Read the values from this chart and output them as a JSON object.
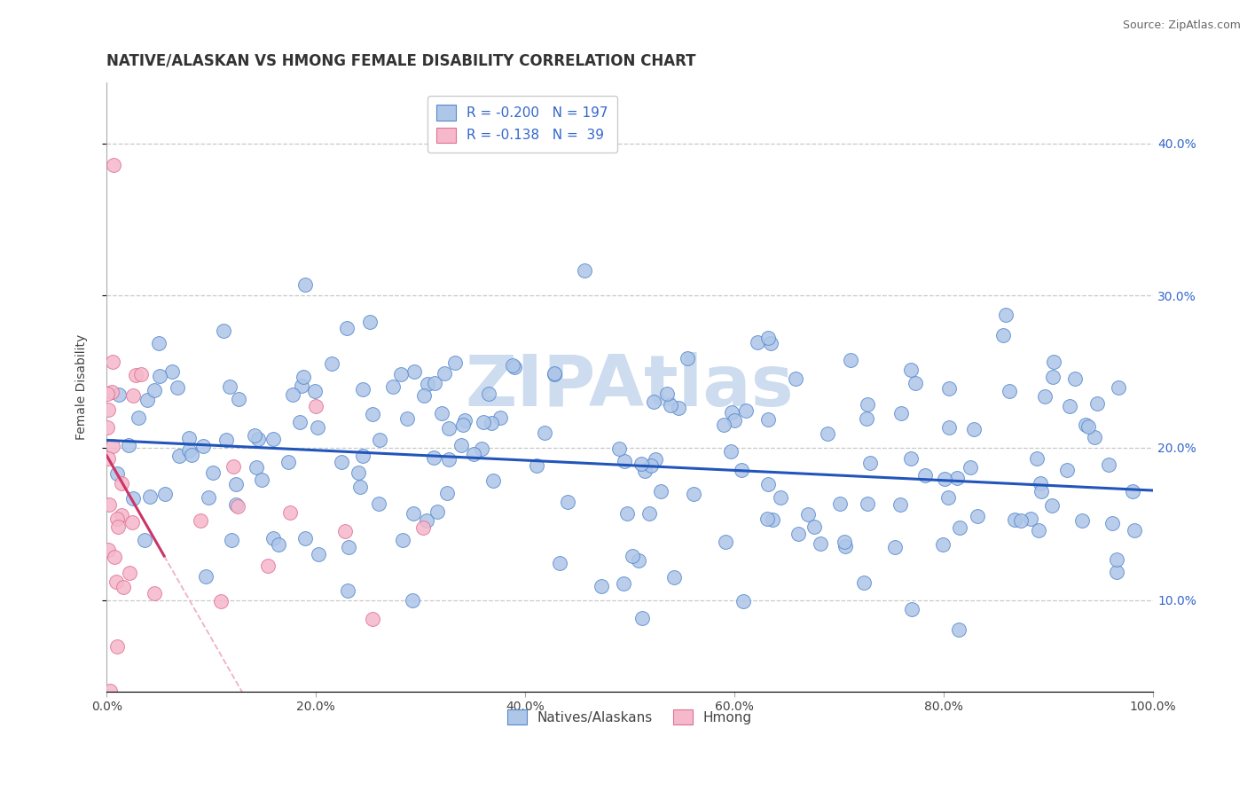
{
  "title": "NATIVE/ALASKAN VS HMONG FEMALE DISABILITY CORRELATION CHART",
  "source": "Source: ZipAtlas.com",
  "ylabel": "Female Disability",
  "legend_labels": [
    "Natives/Alaskans",
    "Hmong"
  ],
  "blue_R": -0.2,
  "blue_N": 197,
  "pink_R": -0.138,
  "pink_N": 39,
  "blue_color": "#aec6e8",
  "blue_edge_color": "#5588cc",
  "blue_line_color": "#2255bb",
  "pink_color": "#f5b8cc",
  "pink_edge_color": "#e07090",
  "pink_line_color": "#cc3366",
  "pink_dash_color": "#f0b0c8",
  "background_color": "#ffffff",
  "grid_color": "#bbbbbb",
  "title_color": "#333333",
  "watermark_color": "#cddcee",
  "legend_text_color": "#3366cc",
  "xlim": [
    0.0,
    1.0
  ],
  "ylim": [
    0.04,
    0.44
  ],
  "yticks": [
    0.1,
    0.2,
    0.3,
    0.4
  ],
  "xticks": [
    0.0,
    0.2,
    0.4,
    0.6,
    0.8,
    1.0
  ],
  "title_fontsize": 12,
  "label_fontsize": 10,
  "legend_fontsize": 11,
  "tick_fontsize": 10,
  "source_fontsize": 9
}
